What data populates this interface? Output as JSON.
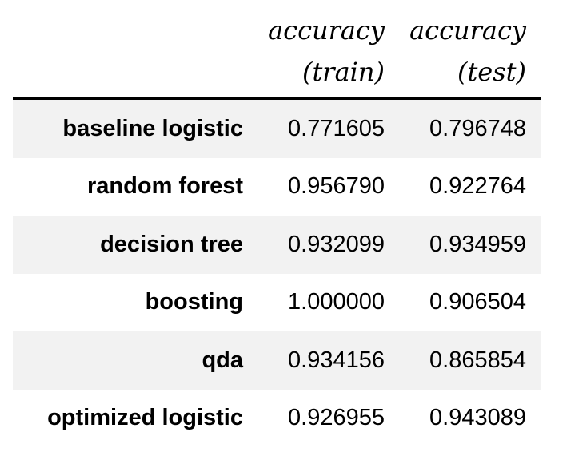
{
  "table": {
    "columns": [
      {
        "line1": "accuracy",
        "line2": "(train)"
      },
      {
        "line1": "accuracy",
        "line2": "(test)"
      }
    ],
    "rows": [
      {
        "label": "baseline logistic",
        "train": "0.771605",
        "test": "0.796748"
      },
      {
        "label": "random forest",
        "train": "0.956790",
        "test": "0.922764"
      },
      {
        "label": "decision tree",
        "train": "0.932099",
        "test": "0.934959"
      },
      {
        "label": "boosting",
        "train": "1.000000",
        "test": "0.906504"
      },
      {
        "label": "qda",
        "train": "0.934156",
        "test": "0.865854"
      },
      {
        "label": "optimized logistic",
        "train": "0.926955",
        "test": "0.943089"
      }
    ],
    "colors": {
      "stripe": "#f2f2f2",
      "text": "#000000",
      "rule": "#000000"
    }
  }
}
